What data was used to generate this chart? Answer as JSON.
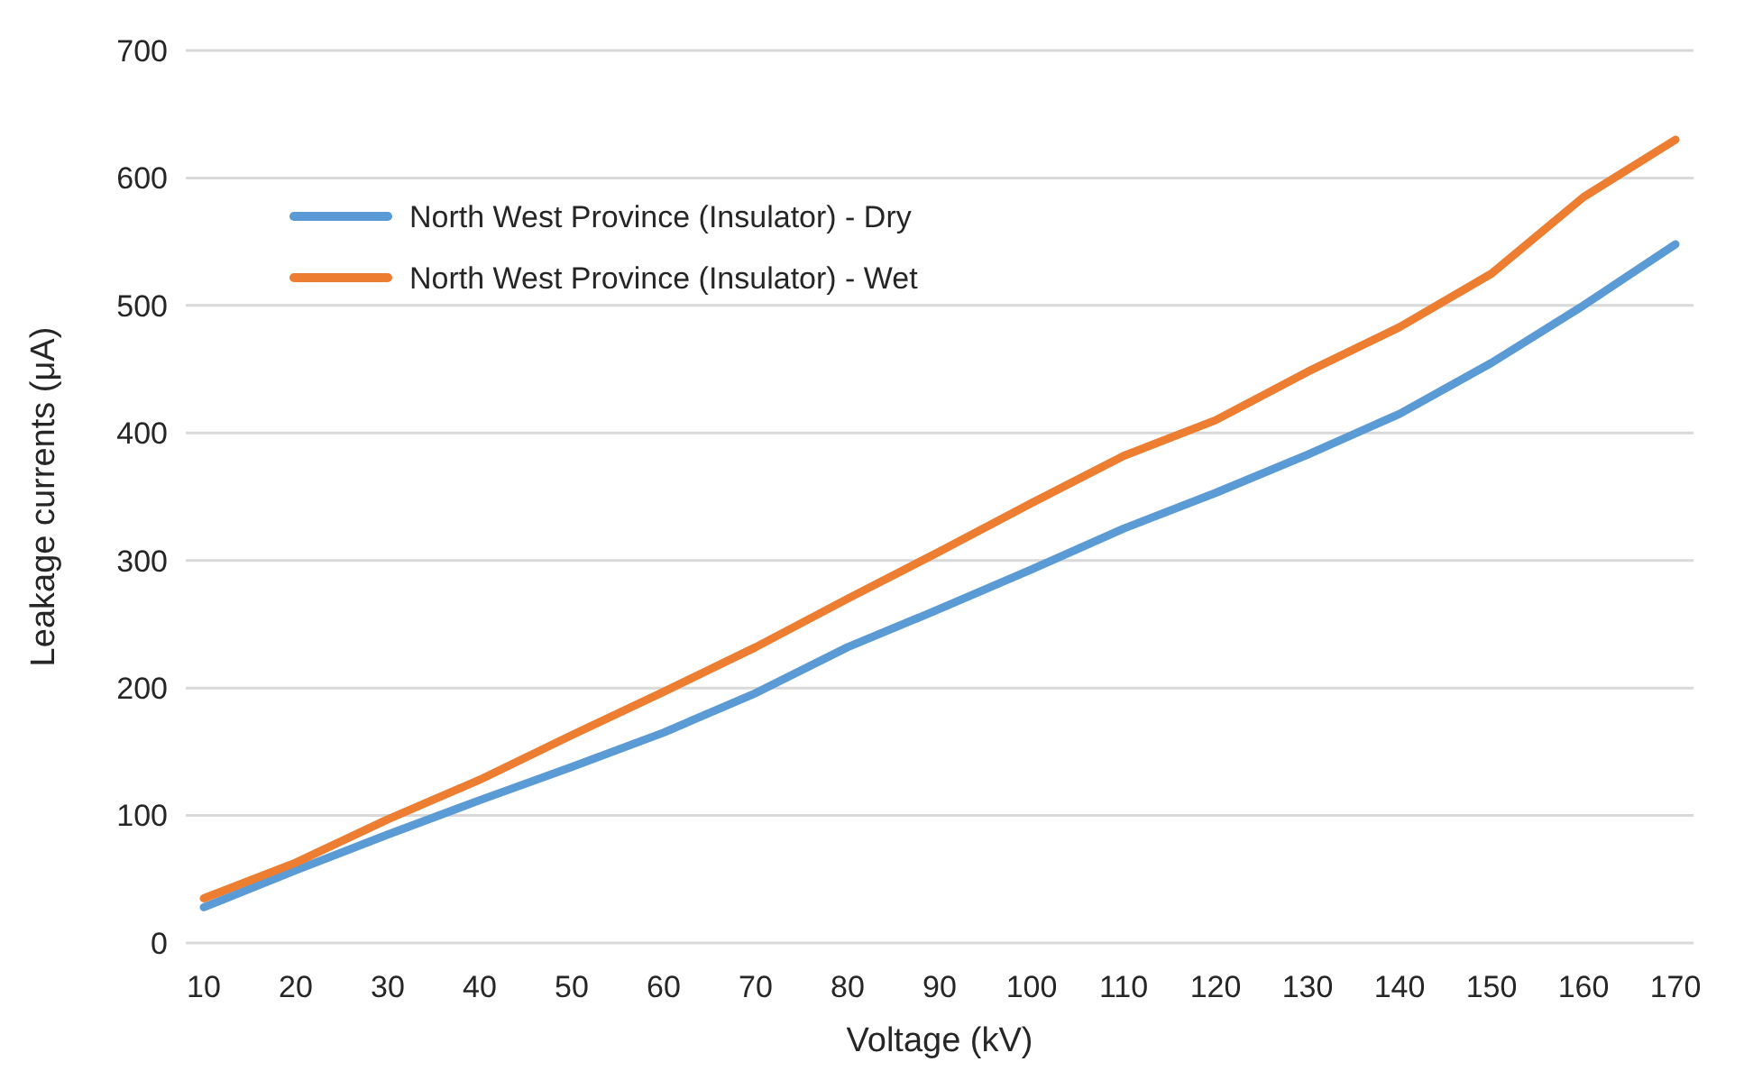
{
  "chart_data": {
    "type": "line",
    "xlabel": "Voltage (kV)",
    "ylabel": "Leakage currents (μA)",
    "categories": [
      "10",
      "20",
      "30",
      "40",
      "50",
      "60",
      "70",
      "80",
      "90",
      "100",
      "110",
      "120",
      "130",
      "140",
      "150",
      "160",
      "170"
    ],
    "series": [
      {
        "name": "North West Province (Insulator) - Dry",
        "color": "#5b9bd5",
        "values": [
          28,
          57,
          85,
          112,
          138,
          165,
          196,
          232,
          262,
          293,
          325,
          353,
          383,
          415,
          455,
          500,
          548
        ]
      },
      {
        "name": "North West Province (Insulator) - Wet",
        "color": "#ed7d31",
        "values": [
          35,
          63,
          97,
          128,
          163,
          197,
          232,
          270,
          307,
          345,
          382,
          410,
          448,
          483,
          525,
          585,
          630
        ]
      }
    ],
    "ylim": [
      0,
      700
    ],
    "yticks": [
      0,
      100,
      200,
      300,
      400,
      500,
      600,
      700
    ],
    "grid": "y",
    "legend": "top left",
    "line_style": "solid",
    "marker": "none"
  }
}
